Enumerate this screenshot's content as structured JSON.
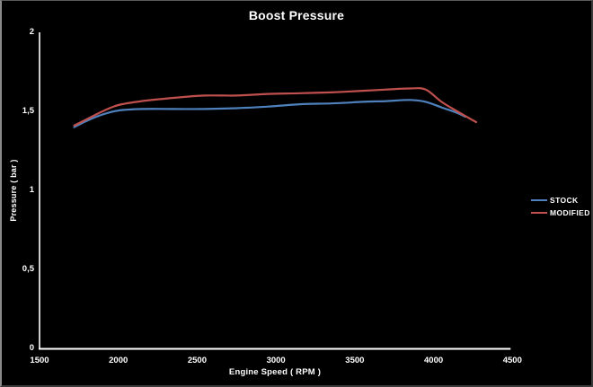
{
  "colors": {
    "background": "#000000",
    "axis": "#ffffff",
    "text": "#ffffff",
    "stock_line": "#4F81BD",
    "modified_line": "#C0504D"
  },
  "chart_data": {
    "type": "line",
    "title": "Boost Pressure",
    "xlabel": "Engine Speed ( RPM )",
    "ylabel": "Pressure ( bar )",
    "xlim": [
      1500,
      4500
    ],
    "ylim": [
      0,
      2
    ],
    "grid": false,
    "legend_position": "right",
    "x_ticks": [
      {
        "label": "1500",
        "value": 1500
      },
      {
        "label": "2000",
        "value": 2000
      },
      {
        "label": "2500",
        "value": 2500
      },
      {
        "label": "3000",
        "value": 3000
      },
      {
        "label": "3500",
        "value": 3500
      },
      {
        "label": "4000",
        "value": 4000
      },
      {
        "label": "4500",
        "value": 4500
      }
    ],
    "y_ticks": [
      {
        "label": "2",
        "value": 2
      },
      {
        "label": "1,5",
        "value": 1.5
      },
      {
        "label": "1",
        "value": 1
      },
      {
        "label": "0,5",
        "value": 0.5
      },
      {
        "label": "0",
        "value": 0
      }
    ],
    "series": [
      {
        "name": "STOCK",
        "color": "#4F81BD",
        "points": [
          [
            1720,
            1.4
          ],
          [
            1800,
            1.44
          ],
          [
            1900,
            1.48
          ],
          [
            2000,
            1.505
          ],
          [
            2150,
            1.515
          ],
          [
            2350,
            1.515
          ],
          [
            2550,
            1.515
          ],
          [
            2750,
            1.52
          ],
          [
            2950,
            1.53
          ],
          [
            3150,
            1.545
          ],
          [
            3350,
            1.55
          ],
          [
            3550,
            1.56
          ],
          [
            3700,
            1.565
          ],
          [
            3850,
            1.572
          ],
          [
            3950,
            1.56
          ],
          [
            4050,
            1.525
          ],
          [
            4150,
            1.49
          ],
          [
            4200,
            1.466
          ]
        ]
      },
      {
        "name": "MODIFIED",
        "color": "#C0504D",
        "points": [
          [
            1720,
            1.41
          ],
          [
            1800,
            1.45
          ],
          [
            1900,
            1.5
          ],
          [
            2000,
            1.54
          ],
          [
            2150,
            1.565
          ],
          [
            2350,
            1.585
          ],
          [
            2550,
            1.6
          ],
          [
            2750,
            1.6
          ],
          [
            2950,
            1.61
          ],
          [
            3150,
            1.615
          ],
          [
            3350,
            1.62
          ],
          [
            3550,
            1.63
          ],
          [
            3700,
            1.638
          ],
          [
            3850,
            1.645
          ],
          [
            3950,
            1.638
          ],
          [
            4050,
            1.56
          ],
          [
            4150,
            1.5
          ],
          [
            4270,
            1.432
          ]
        ]
      }
    ]
  }
}
